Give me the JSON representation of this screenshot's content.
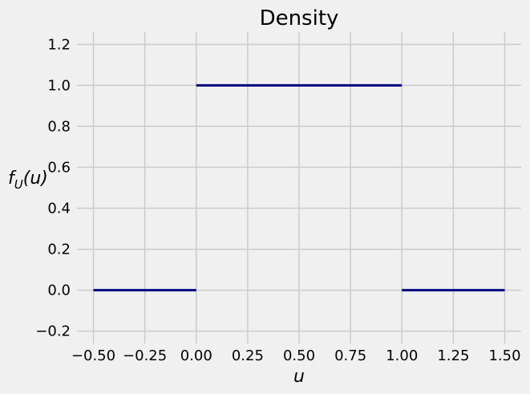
{
  "chart_data": {
    "type": "line",
    "title": "Density",
    "xlabel": "u",
    "ylabel": {
      "base": "f",
      "subscript": "U",
      "argument": "(u)"
    },
    "xlim": [
      -0.58,
      1.58
    ],
    "ylim": [
      -0.26,
      1.26
    ],
    "xticks": [
      -0.5,
      -0.25,
      0.0,
      0.25,
      0.5,
      0.75,
      1.0,
      1.25,
      1.5
    ],
    "xtick_labels": [
      "−0.50",
      "−0.25",
      "0.00",
      "0.25",
      "0.50",
      "0.75",
      "1.00",
      "1.25",
      "1.50"
    ],
    "yticks": [
      -0.2,
      0.0,
      0.2,
      0.4,
      0.6,
      0.8,
      1.0,
      1.2
    ],
    "ytick_labels": [
      "−0.2",
      "0.0",
      "0.2",
      "0.4",
      "0.6",
      "0.8",
      "1.0",
      "1.2"
    ],
    "grid": true,
    "series": [
      {
        "color": "#000080",
        "segments": [
          [
            [
              -0.5,
              0.0
            ],
            [
              0.0,
              0.0
            ]
          ],
          [
            [
              0.0,
              1.0
            ],
            [
              1.0,
              1.0
            ]
          ],
          [
            [
              1.0,
              0.0
            ],
            [
              1.5,
              0.0
            ]
          ]
        ]
      }
    ],
    "colors": {
      "background": "#f0f0f0",
      "grid": "#cbcbcb",
      "line": "#000080"
    }
  }
}
